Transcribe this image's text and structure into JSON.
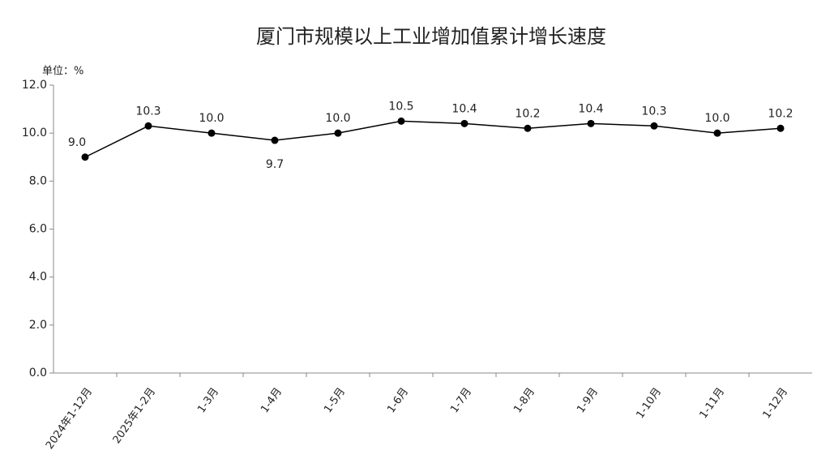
{
  "chart_data": {
    "type": "line",
    "title": "厦门市规模以上工业增加值累计增长速度",
    "unit_label": "单位：%",
    "categories": [
      "2024年1-12月",
      "2025年1-2月",
      "1-3月",
      "1-4月",
      "1-5月",
      "1-6月",
      "1-7月",
      "1-8月",
      "1-9月",
      "1-10月",
      "1-11月",
      "1-12月"
    ],
    "series": [
      {
        "name": "增长速度",
        "color": "#000000",
        "values": [
          9.0,
          10.3,
          10.0,
          9.7,
          10.0,
          10.5,
          10.4,
          10.2,
          10.4,
          10.3,
          10.0,
          10.2
        ],
        "value_labels": [
          "9.0",
          "10.3",
          "10.0",
          "9.7",
          "10.0",
          "10.5",
          "10.4",
          "10.2",
          "10.4",
          "10.3",
          "10.0",
          "10.2"
        ]
      }
    ],
    "ylim": [
      0,
      12
    ],
    "yticks": [
      {
        "value": 0,
        "label": "0.0"
      },
      {
        "value": 2,
        "label": "2.0"
      },
      {
        "value": 4,
        "label": "4.0"
      },
      {
        "value": 6,
        "label": "6.0"
      },
      {
        "value": 8,
        "label": "8.0"
      },
      {
        "value": 10,
        "label": "10.0"
      },
      {
        "value": 12,
        "label": "12.0"
      }
    ],
    "grid": false
  }
}
